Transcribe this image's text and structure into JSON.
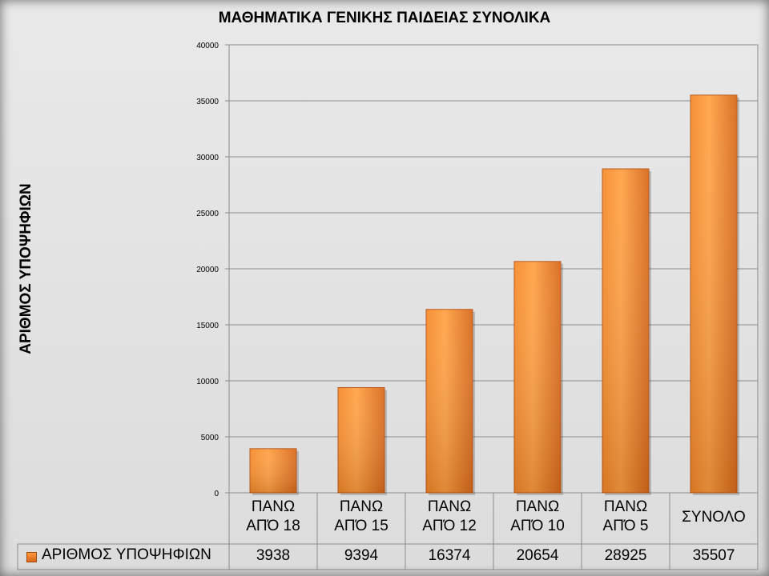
{
  "chart_data": {
    "type": "bar",
    "title": "ΜΑΘΗΜΑΤΙΚΑ ΓΕΝΙΚΗΣ ΠΑΙΔΕΙΑΣ ΣΥΝΟΛΙΚΑ",
    "ylabel": "ΑΡΙΘΜΟΣ ΥΠΟΨΗΦΙΩΝ",
    "xlabel": "",
    "ylim": [
      0,
      40000
    ],
    "y_ticks": [
      "0",
      "5000",
      "10000",
      "15000",
      "20000",
      "25000",
      "30000",
      "35000",
      "40000"
    ],
    "categories": [
      "ΠΑΝΩ\nΑΠΌ 18",
      "ΠΑΝΩ\nΑΠΌ 15",
      "ΠΑΝΩ\nΑΠΌ 12",
      "ΠΑΝΩ\nΑΠΌ 10",
      "ΠΑΝΩ\nΑΠΌ 5",
      "ΣΥΝΟΛΟ"
    ],
    "series": [
      {
        "name": "ΑΡΙΘΜΟΣ ΥΠΟΨΗΦΙΩΝ",
        "values": [
          3938,
          9394,
          16374,
          20654,
          28925,
          35507
        ],
        "display_values": [
          "3938",
          "9394",
          "16374",
          "20654",
          "28925",
          "35507"
        ],
        "color": "#f07f22"
      }
    ],
    "grid": true,
    "legend": "data-table"
  }
}
